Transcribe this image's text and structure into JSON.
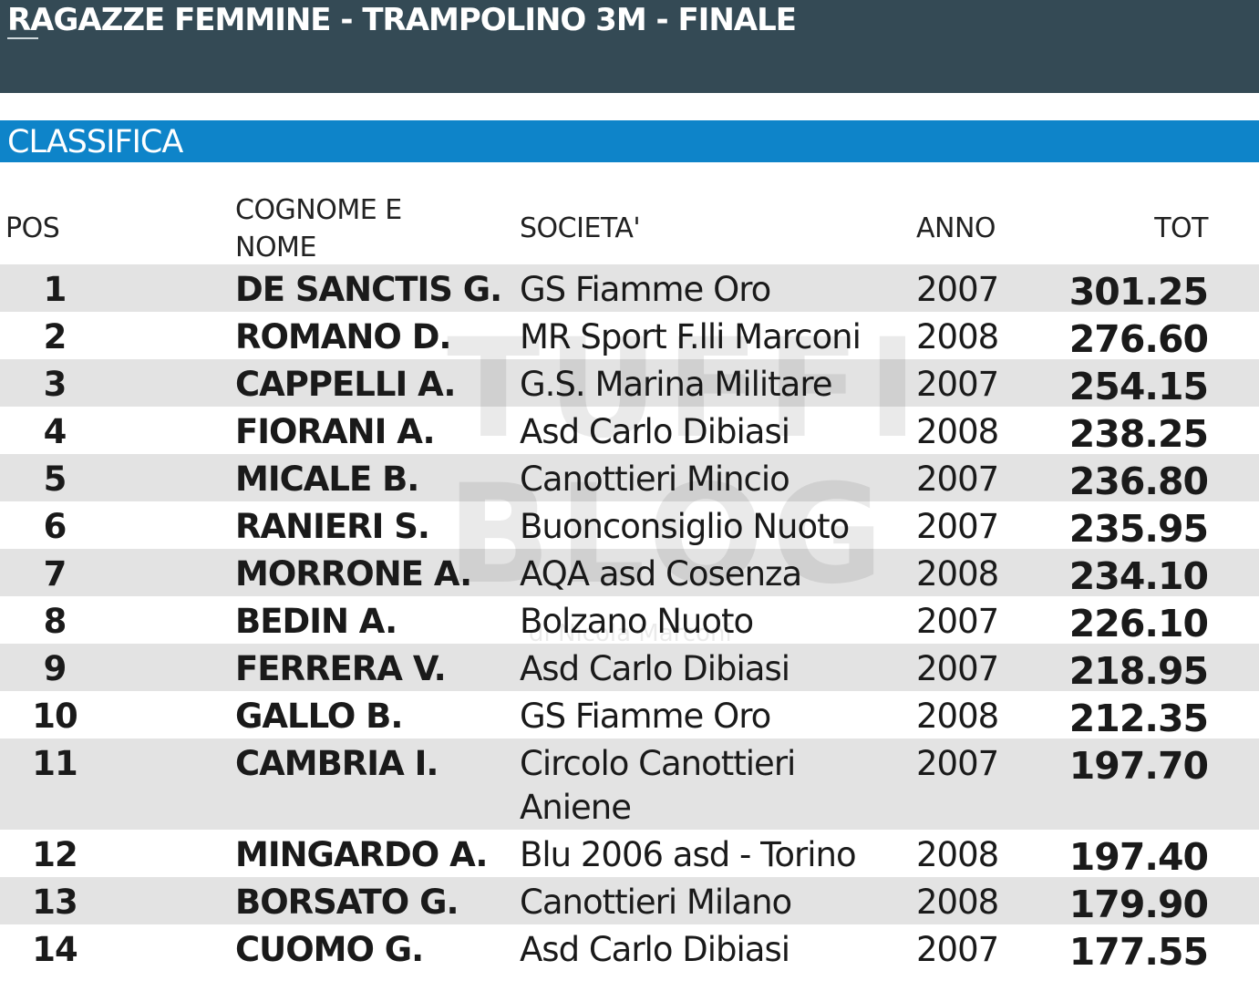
{
  "header": {
    "title": "RAGAZZE FEMMINE - TRAMPOLINO 3M - FINALE"
  },
  "section": {
    "title": "CLASSIFICA"
  },
  "columns": {
    "pos": "POS",
    "name": "COGNOME E NOME",
    "club": "SOCIETA'",
    "year": "ANNO",
    "tot": "TOT"
  },
  "rows": [
    {
      "pos": "1",
      "name": "DE SANCTIS G.",
      "club": "GS Fiamme Oro",
      "year": "2007",
      "tot": "301.25"
    },
    {
      "pos": "2",
      "name": "ROMANO D.",
      "club": "MR Sport F.lli Marconi",
      "year": "2008",
      "tot": "276.60"
    },
    {
      "pos": "3",
      "name": "CAPPELLI A.",
      "club": "G.S. Marina Militare",
      "year": "2007",
      "tot": "254.15"
    },
    {
      "pos": "4",
      "name": "FIORANI A.",
      "club": "Asd Carlo Dibiasi",
      "year": "2008",
      "tot": "238.25"
    },
    {
      "pos": "5",
      "name": "MICALE B.",
      "club": "Canottieri Mincio",
      "year": "2007",
      "tot": "236.80"
    },
    {
      "pos": "6",
      "name": "RANIERI S.",
      "club": "Buonconsiglio Nuoto",
      "year": "2007",
      "tot": "235.95"
    },
    {
      "pos": "7",
      "name": "MORRONE A.",
      "club": "AQA asd Cosenza",
      "year": "2008",
      "tot": "234.10"
    },
    {
      "pos": "8",
      "name": "BEDIN A.",
      "club": "Bolzano Nuoto",
      "year": "2007",
      "tot": "226.10"
    },
    {
      "pos": "9",
      "name": "FERRERA V.",
      "club": "Asd Carlo Dibiasi",
      "year": "2007",
      "tot": "218.95"
    },
    {
      "pos": "10",
      "name": "GALLO B.",
      "club": "GS Fiamme Oro",
      "year": "2008",
      "tot": "212.35"
    },
    {
      "pos": "11",
      "name": "CAMBRIA I.",
      "club": "Circolo Canottieri Aniene",
      "year": "2007",
      "tot": "197.70"
    },
    {
      "pos": "12",
      "name": "MINGARDO A.",
      "club": "Blu 2006 asd - Torino",
      "year": "2008",
      "tot": "197.40"
    },
    {
      "pos": "13",
      "name": "BORSATO G.",
      "club": "Canottieri Milano",
      "year": "2008",
      "tot": "179.90"
    },
    {
      "pos": "14",
      "name": "CUOMO G.",
      "club": "Asd Carlo Dibiasi",
      "year": "2007",
      "tot": "177.55"
    }
  ],
  "watermark": {
    "line1": "TUFFI",
    "line2": "BLOG",
    "line3": "di Nicola Marconi"
  }
}
